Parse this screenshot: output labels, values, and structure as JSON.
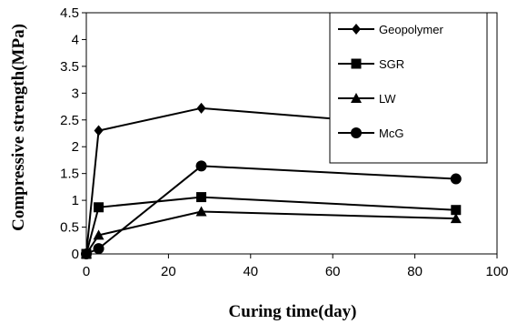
{
  "chart_data": {
    "type": "line",
    "title": "",
    "xlabel": "Curing time(day)",
    "ylabel": "Compressive strength(MPa)",
    "xlim": [
      0,
      100
    ],
    "ylim": [
      0,
      4.5
    ],
    "xticks": [
      "0",
      "20",
      "40",
      "60",
      "80",
      "100"
    ],
    "yticks": [
      "0",
      "0.5",
      "1",
      "1.5",
      "2",
      "2.5",
      "3",
      "3.5",
      "4",
      "4.5"
    ],
    "grid": false,
    "legend_position": "top-right",
    "x": [
      0,
      3,
      28,
      90
    ],
    "series": [
      {
        "name": "Geopolymer",
        "marker": "diamond",
        "values": [
          0,
          2.3,
          2.72,
          2.34
        ]
      },
      {
        "name": "SGR",
        "marker": "square",
        "values": [
          0,
          0.87,
          1.06,
          0.82
        ]
      },
      {
        "name": "LW",
        "marker": "triangle",
        "values": [
          0,
          0.35,
          0.79,
          0.66
        ]
      },
      {
        "name": "McG",
        "marker": "circle",
        "values": [
          0,
          0.1,
          1.64,
          1.4
        ]
      }
    ]
  }
}
